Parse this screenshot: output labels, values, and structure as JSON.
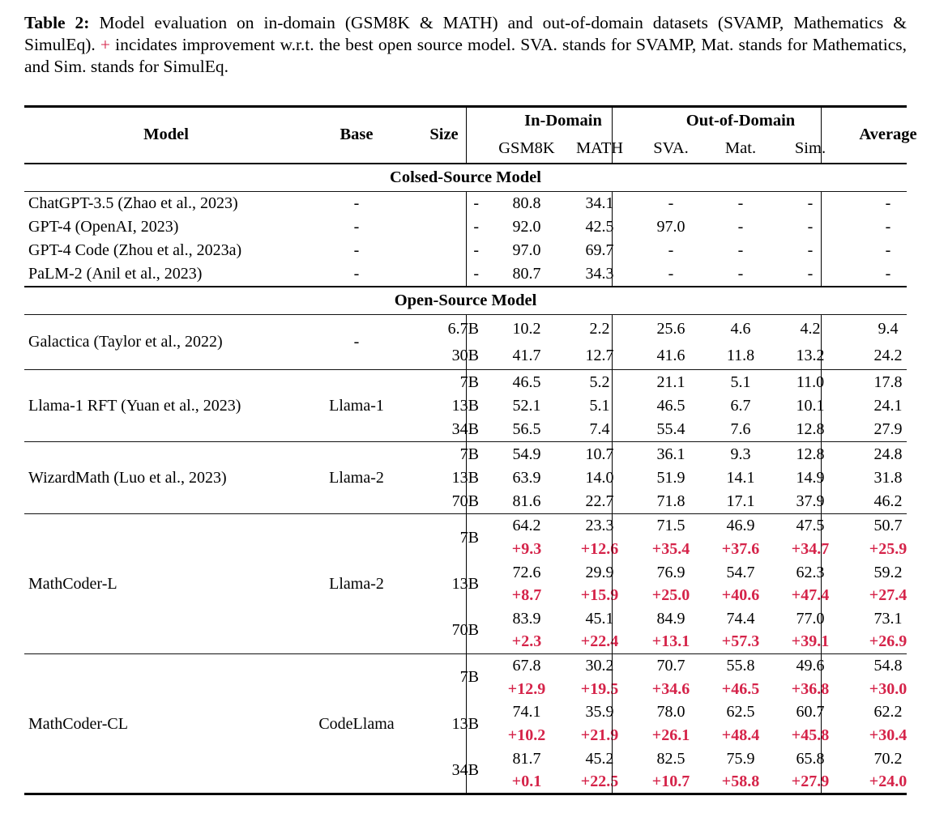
{
  "caption": {
    "label": "Table 2:",
    "text_before_plus": " Model evaluation on in-domain (GSM8K & MATH) and out-of-domain datasets (SVAMP, Mathematics & SimulEq). ",
    "plus_symbol": "+",
    "text_after_plus": " incidates improvement w.r.t. the best open source model. SVA. stands for SVAMP, Mat. stands for Mathematics, and Sim. stands for SimulEq."
  },
  "colors": {
    "accent_red": "#d52349"
  },
  "table": {
    "header": {
      "model": "Model",
      "base": "Base",
      "size": "Size",
      "in_domain": "In-Domain",
      "out_of_domain": "Out-of-Domain",
      "gsm8k": "GSM8K",
      "math": "MATH",
      "sva": "SVA.",
      "mat": "Mat.",
      "sim": "Sim.",
      "average": "Average"
    },
    "sections": [
      {
        "title": "Colsed-Source Model",
        "blocks": [
          {
            "models": [
              {
                "name": "ChatGPT-3.5 (Zhao et al., 2023)",
                "base": "-",
                "rows": [
                  {
                    "size": "-",
                    "values": [
                      "80.8",
                      "34.1",
                      "-",
                      "-",
                      "-",
                      "-"
                    ]
                  }
                ]
              },
              {
                "name": "GPT-4 (OpenAI, 2023)",
                "base": "-",
                "rows": [
                  {
                    "size": "-",
                    "values": [
                      "92.0",
                      "42.5",
                      "97.0",
                      "-",
                      "-",
                      "-"
                    ]
                  }
                ]
              },
              {
                "name": "GPT-4 Code (Zhou et al., 2023a)",
                "base": "-",
                "rows": [
                  {
                    "size": "-",
                    "values": [
                      "97.0",
                      "69.7",
                      "-",
                      "-",
                      "-",
                      "-"
                    ]
                  }
                ]
              },
              {
                "name": "PaLM-2 (Anil et al., 2023)",
                "base": "-",
                "rows": [
                  {
                    "size": "-",
                    "values": [
                      "80.7",
                      "34.3",
                      "-",
                      "-",
                      "-",
                      "-"
                    ]
                  }
                ]
              }
            ]
          }
        ]
      },
      {
        "title": "Open-Source Model",
        "blocks": [
          {
            "models": [
              {
                "name": "Galactica (Taylor et al., 2022)",
                "base": "-",
                "rows": [
                  {
                    "size": "6.7B",
                    "values": [
                      "10.2",
                      "2.2",
                      "25.6",
                      "4.6",
                      "4.2",
                      "9.4"
                    ]
                  },
                  {
                    "size": "30B",
                    "values": [
                      "41.7",
                      "12.7",
                      "41.6",
                      "11.8",
                      "13.2",
                      "24.2"
                    ]
                  }
                ]
              }
            ]
          },
          {
            "models": [
              {
                "name": "Llama-1 RFT (Yuan et al., 2023)",
                "base": "Llama-1",
                "rows": [
                  {
                    "size": "7B",
                    "values": [
                      "46.5",
                      "5.2",
                      "21.1",
                      "5.1",
                      "11.0",
                      "17.8"
                    ]
                  },
                  {
                    "size": "13B",
                    "values": [
                      "52.1",
                      "5.1",
                      "46.5",
                      "6.7",
                      "10.1",
                      "24.1"
                    ]
                  },
                  {
                    "size": "34B",
                    "values": [
                      "56.5",
                      "7.4",
                      "55.4",
                      "7.6",
                      "12.8",
                      "27.9"
                    ]
                  }
                ]
              }
            ]
          },
          {
            "models": [
              {
                "name": "WizardMath (Luo et al., 2023)",
                "base": "Llama-2",
                "rows": [
                  {
                    "size": "7B",
                    "values": [
                      "54.9",
                      "10.7",
                      "36.1",
                      "9.3",
                      "12.8",
                      "24.8"
                    ]
                  },
                  {
                    "size": "13B",
                    "values": [
                      "63.9",
                      "14.0",
                      "51.9",
                      "14.1",
                      "14.9",
                      "31.8"
                    ]
                  },
                  {
                    "size": "70B",
                    "values": [
                      "81.6",
                      "22.7",
                      "71.8",
                      "17.1",
                      "37.9",
                      "46.2"
                    ]
                  }
                ]
              }
            ]
          },
          {
            "models": [
              {
                "name": "MathCoder-L",
                "base": "Llama-2",
                "rows": [
                  {
                    "size": "7B",
                    "values": [
                      "64.2",
                      "23.3",
                      "71.5",
                      "46.9",
                      "47.5",
                      "50.7"
                    ],
                    "delta": [
                      "+9.3",
                      "+12.6",
                      "+35.4",
                      "+37.6",
                      "+34.7",
                      "+25.9"
                    ]
                  },
                  {
                    "size": "13B",
                    "values": [
                      "72.6",
                      "29.9",
                      "76.9",
                      "54.7",
                      "62.3",
                      "59.2"
                    ],
                    "delta": [
                      "+8.7",
                      "+15.9",
                      "+25.0",
                      "+40.6",
                      "+47.4",
                      "+27.4"
                    ]
                  },
                  {
                    "size": "70B",
                    "values": [
                      "83.9",
                      "45.1",
                      "84.9",
                      "74.4",
                      "77.0",
                      "73.1"
                    ],
                    "delta": [
                      "+2.3",
                      "+22.4",
                      "+13.1",
                      "+57.3",
                      "+39.1",
                      "+26.9"
                    ]
                  }
                ]
              }
            ]
          },
          {
            "models": [
              {
                "name": "MathCoder-CL",
                "base": "CodeLlama",
                "rows": [
                  {
                    "size": "7B",
                    "values": [
                      "67.8",
                      "30.2",
                      "70.7",
                      "55.8",
                      "49.6",
                      "54.8"
                    ],
                    "delta": [
                      "+12.9",
                      "+19.5",
                      "+34.6",
                      "+46.5",
                      "+36.8",
                      "+30.0"
                    ]
                  },
                  {
                    "size": "13B",
                    "values": [
                      "74.1",
                      "35.9",
                      "78.0",
                      "62.5",
                      "60.7",
                      "62.2"
                    ],
                    "delta": [
                      "+10.2",
                      "+21.9",
                      "+26.1",
                      "+48.4",
                      "+45.8",
                      "+30.4"
                    ]
                  },
                  {
                    "size": "34B",
                    "values": [
                      "81.7",
                      "45.2",
                      "82.5",
                      "75.9",
                      "65.8",
                      "70.2"
                    ],
                    "delta": [
                      "+0.1",
                      "+22.5",
                      "+10.7",
                      "+58.8",
                      "+27.9",
                      "+24.0"
                    ]
                  }
                ]
              }
            ]
          }
        ]
      }
    ]
  }
}
